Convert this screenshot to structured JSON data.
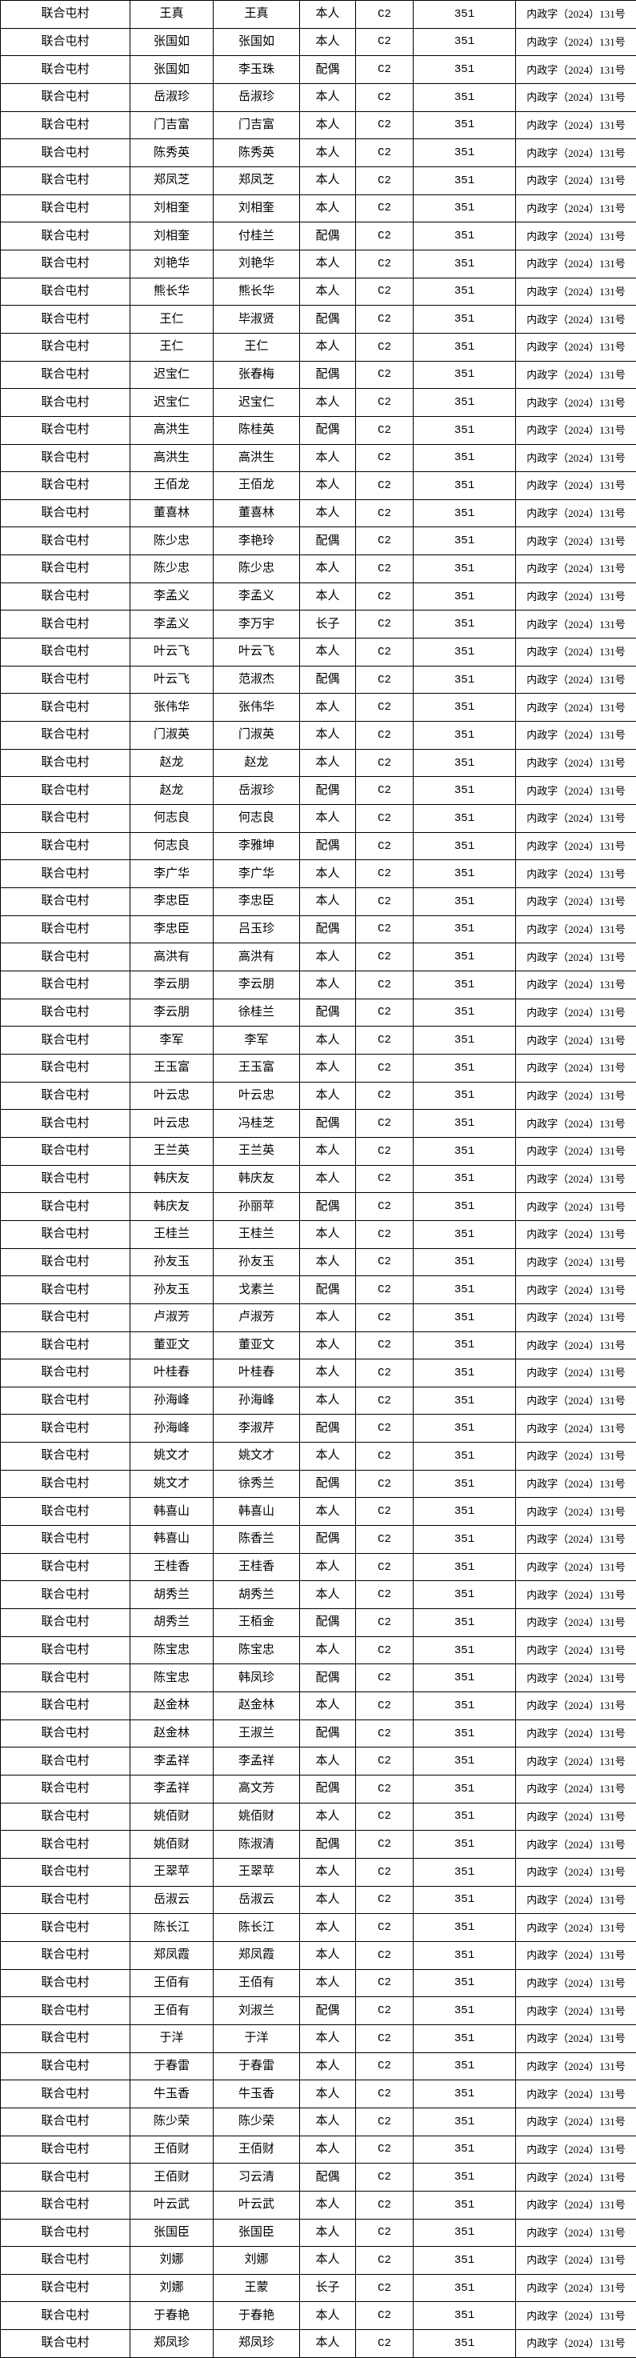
{
  "colors": {
    "background": "#ffffff",
    "border": "#000000",
    "text": "#000000"
  },
  "table": {
    "village": "联合屯村",
    "category": "C2",
    "code": "351",
    "doc_no": "内政字（2024）131号",
    "column_semantics": [
      "village-cell",
      "householder-cell",
      "member-cell",
      "relation-cell",
      "category-cell",
      "code-cell",
      "doc-number-cell"
    ],
    "relation_values": [
      "本人",
      "配偶",
      "长子"
    ],
    "rows": [
      [
        "王真",
        "王真",
        "本人"
      ],
      [
        "张国如",
        "张国如",
        "本人"
      ],
      [
        "张国如",
        "李玉珠",
        "配偶"
      ],
      [
        "岳淑珍",
        "岳淑珍",
        "本人"
      ],
      [
        "门吉富",
        "门吉富",
        "本人"
      ],
      [
        "陈秀英",
        "陈秀英",
        "本人"
      ],
      [
        "郑凤芝",
        "郑凤芝",
        "本人"
      ],
      [
        "刘相奎",
        "刘相奎",
        "本人"
      ],
      [
        "刘相奎",
        "付桂兰",
        "配偶"
      ],
      [
        "刘艳华",
        "刘艳华",
        "本人"
      ],
      [
        "熊长华",
        "熊长华",
        "本人"
      ],
      [
        "王仁",
        "毕淑贤",
        "配偶"
      ],
      [
        "王仁",
        "王仁",
        "本人"
      ],
      [
        "迟宝仁",
        "张春梅",
        "配偶"
      ],
      [
        "迟宝仁",
        "迟宝仁",
        "本人"
      ],
      [
        "高洪生",
        "陈桂英",
        "配偶"
      ],
      [
        "高洪生",
        "高洪生",
        "本人"
      ],
      [
        "王佰龙",
        "王佰龙",
        "本人"
      ],
      [
        "董喜林",
        "董喜林",
        "本人"
      ],
      [
        "陈少忠",
        "李艳玲",
        "配偶"
      ],
      [
        "陈少忠",
        "陈少忠",
        "本人"
      ],
      [
        "李孟义",
        "李孟义",
        "本人"
      ],
      [
        "李孟义",
        "李万宇",
        "长子"
      ],
      [
        "叶云飞",
        "叶云飞",
        "本人"
      ],
      [
        "叶云飞",
        "范淑杰",
        "配偶"
      ],
      [
        "张伟华",
        "张伟华",
        "本人"
      ],
      [
        "门淑英",
        "门淑英",
        "本人"
      ],
      [
        "赵龙",
        "赵龙",
        "本人"
      ],
      [
        "赵龙",
        "岳淑珍",
        "配偶"
      ],
      [
        "何志良",
        "何志良",
        "本人"
      ],
      [
        "何志良",
        "李雅坤",
        "配偶"
      ],
      [
        "李广华",
        "李广华",
        "本人"
      ],
      [
        "李忠臣",
        "李忠臣",
        "本人"
      ],
      [
        "李忠臣",
        "吕玉珍",
        "配偶"
      ],
      [
        "高洪有",
        "高洪有",
        "本人"
      ],
      [
        "李云朋",
        "李云朋",
        "本人"
      ],
      [
        "李云朋",
        "徐桂兰",
        "配偶"
      ],
      [
        "李军",
        "李军",
        "本人"
      ],
      [
        "王玉富",
        "王玉富",
        "本人"
      ],
      [
        "叶云忠",
        "叶云忠",
        "本人"
      ],
      [
        "叶云忠",
        "冯桂芝",
        "配偶"
      ],
      [
        "王兰英",
        "王兰英",
        "本人"
      ],
      [
        "韩庆友",
        "韩庆友",
        "本人"
      ],
      [
        "韩庆友",
        "孙丽苹",
        "配偶"
      ],
      [
        "王桂兰",
        "王桂兰",
        "本人"
      ],
      [
        "孙友玉",
        "孙友玉",
        "本人"
      ],
      [
        "孙友玉",
        "戈素兰",
        "配偶"
      ],
      [
        "卢淑芳",
        "卢淑芳",
        "本人"
      ],
      [
        "董亚文",
        "董亚文",
        "本人"
      ],
      [
        "叶桂春",
        "叶桂春",
        "本人"
      ],
      [
        "孙海峰",
        "孙海峰",
        "本人"
      ],
      [
        "孙海峰",
        "李淑芹",
        "配偶"
      ],
      [
        "姚文才",
        "姚文才",
        "本人"
      ],
      [
        "姚文才",
        "徐秀兰",
        "配偶"
      ],
      [
        "韩喜山",
        "韩喜山",
        "本人"
      ],
      [
        "韩喜山",
        "陈香兰",
        "配偶"
      ],
      [
        "王桂香",
        "王桂香",
        "本人"
      ],
      [
        "胡秀兰",
        "胡秀兰",
        "本人"
      ],
      [
        "胡秀兰",
        "王栢金",
        "配偶"
      ],
      [
        "陈宝忠",
        "陈宝忠",
        "本人"
      ],
      [
        "陈宝忠",
        "韩凤珍",
        "配偶"
      ],
      [
        "赵金林",
        "赵金林",
        "本人"
      ],
      [
        "赵金林",
        "王淑兰",
        "配偶"
      ],
      [
        "李孟祥",
        "李孟祥",
        "本人"
      ],
      [
        "李孟祥",
        "高文芳",
        "配偶"
      ],
      [
        "姚佰财",
        "姚佰财",
        "本人"
      ],
      [
        "姚佰财",
        "陈淑清",
        "配偶"
      ],
      [
        "王翠苹",
        "王翠苹",
        "本人"
      ],
      [
        "岳淑云",
        "岳淑云",
        "本人"
      ],
      [
        "陈长江",
        "陈长江",
        "本人"
      ],
      [
        "郑凤霞",
        "郑凤霞",
        "本人"
      ],
      [
        "王佰有",
        "王佰有",
        "本人"
      ],
      [
        "王佰有",
        "刘淑兰",
        "配偶"
      ],
      [
        "于洋",
        "于洋",
        "本人"
      ],
      [
        "于春雷",
        "于春雷",
        "本人"
      ],
      [
        "牛玉香",
        "牛玉香",
        "本人"
      ],
      [
        "陈少荣",
        "陈少荣",
        "本人"
      ],
      [
        "王佰财",
        "王佰财",
        "本人"
      ],
      [
        "王佰财",
        "习云清",
        "配偶"
      ],
      [
        "叶云武",
        "叶云武",
        "本人"
      ],
      [
        "张国臣",
        "张国臣",
        "本人"
      ],
      [
        "刘娜",
        "刘娜",
        "本人"
      ],
      [
        "刘娜",
        "王蒙",
        "长子"
      ],
      [
        "于春艳",
        "于春艳",
        "本人"
      ],
      [
        "郑凤珍",
        "郑凤珍",
        "本人"
      ]
    ]
  }
}
